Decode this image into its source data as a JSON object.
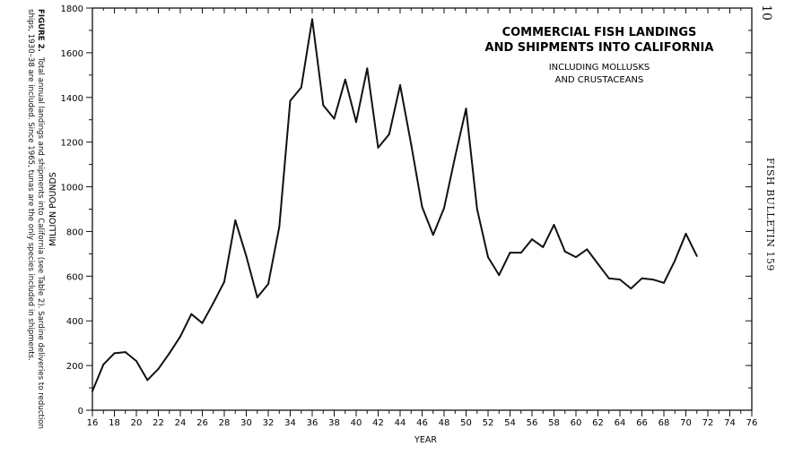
{
  "page": {
    "page_number": "10",
    "running_head": "FISH BULLETIN 159"
  },
  "caption": {
    "label": "FIGURE 2.",
    "text": "Total annual landings and shipments into California (see Table 2). Sardine deliveries to reduction ships, 1930–38 are included. Since 1965, tunas are the only species included in shipments."
  },
  "chart_data": {
    "type": "line",
    "title_lines": [
      "COMMERCIAL FISH LANDINGS",
      "AND SHIPMENTS INTO CALIFORNIA"
    ],
    "subtitle_lines": [
      "INCLUDING MOLLUSKS",
      "AND CRUSTACEANS"
    ],
    "xlabel": "YEAR",
    "ylabel": "MILLION POUNDS",
    "xlim": [
      16,
      76
    ],
    "ylim": [
      0,
      1800
    ],
    "x_ticks": [
      "16",
      "18",
      "20",
      "22",
      "24",
      "26",
      "28",
      "30",
      "32",
      "34",
      "36",
      "38",
      "40",
      "42",
      "44",
      "46",
      "48",
      "50",
      "52",
      "54",
      "56",
      "58",
      "60",
      "62",
      "64",
      "66",
      "68",
      "70",
      "72",
      "74",
      "76"
    ],
    "y_ticks": [
      "0",
      "200",
      "400",
      "600",
      "800",
      "1000",
      "1200",
      "1400",
      "1600",
      "1800"
    ],
    "grid": false,
    "series": [
      {
        "x": [
          16,
          17,
          18,
          19,
          20,
          21,
          22,
          23,
          24,
          25,
          26,
          27,
          28,
          29,
          30,
          31,
          32,
          33,
          34,
          35,
          36,
          37,
          38,
          39,
          40,
          41,
          42,
          43,
          44,
          45,
          46,
          47,
          48,
          49,
          50,
          51,
          52,
          53,
          54,
          55,
          56,
          57,
          58,
          59,
          60,
          61,
          62,
          63,
          64,
          65,
          66,
          67,
          68,
          69,
          70,
          71
        ],
        "values": [
          85,
          205,
          255,
          260,
          220,
          135,
          185,
          255,
          330,
          430,
          390,
          480,
          575,
          850,
          690,
          505,
          565,
          820,
          1385,
          1445,
          1750,
          1365,
          1305,
          1480,
          1290,
          1530,
          1175,
          1235,
          1455,
          1190,
          910,
          785,
          905,
          1135,
          1350,
          900,
          685,
          605,
          705,
          705,
          765,
          730,
          830,
          710,
          685,
          720,
          655,
          590,
          585,
          545,
          590,
          585,
          570,
          670,
          790,
          690
        ]
      }
    ]
  }
}
